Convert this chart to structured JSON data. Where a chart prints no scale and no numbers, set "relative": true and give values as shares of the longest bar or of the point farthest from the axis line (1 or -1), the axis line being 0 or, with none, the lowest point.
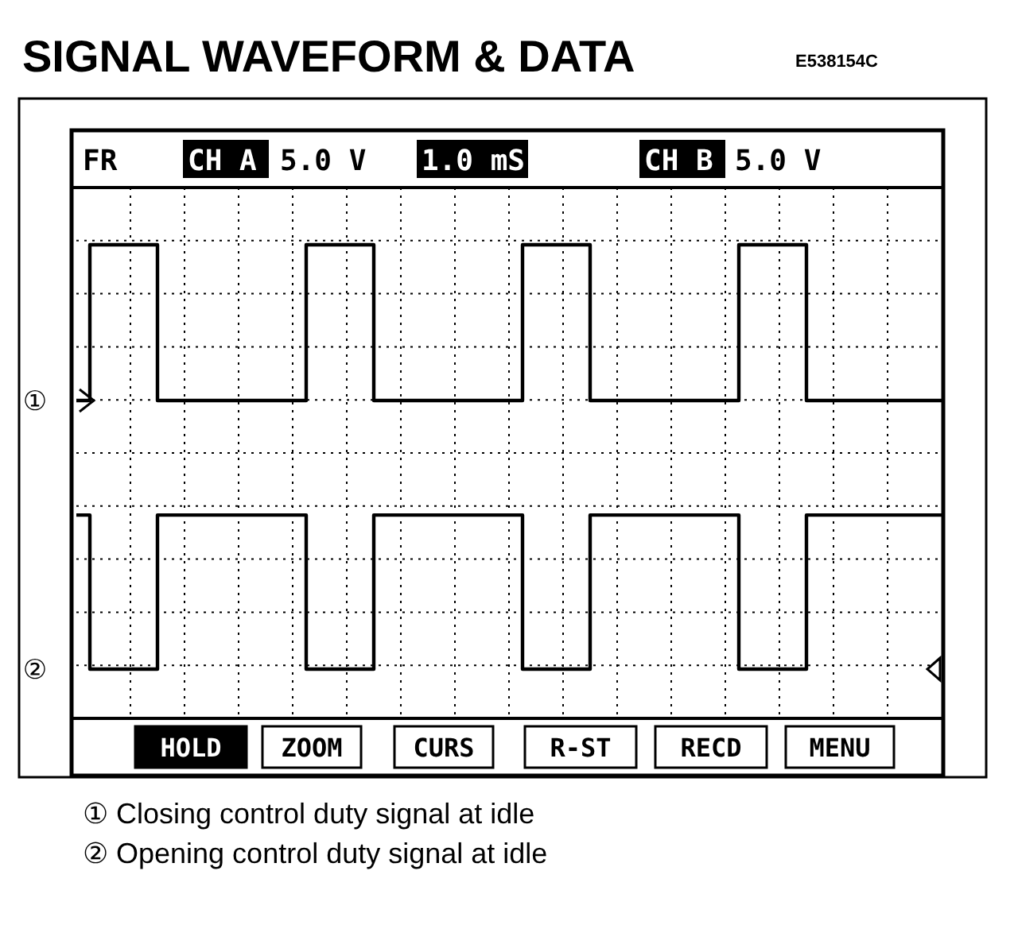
{
  "chart_data": {
    "type": "step",
    "title": "SIGNAL WAVEFORM & DATA",
    "subtitle": "E538154C",
    "relative": true,
    "categories": [
      null,
      null,
      null,
      null,
      null,
      null,
      null,
      null,
      null,
      null,
      null,
      null,
      null,
      null,
      null,
      null,
      null,
      null,
      null,
      null,
      null,
      null,
      null,
      null,
      null,
      null,
      null,
      null,
      null,
      null,
      null,
      null,
      null,
      null,
      null,
      null,
      null,
      null,
      null,
      null,
      null,
      null,
      null,
      null,
      null,
      null,
      null,
      null,
      null,
      null,
      null,
      null,
      null,
      null,
      null,
      null,
      null,
      null,
      null,
      null,
      null,
      null,
      null,
      null,
      null
    ],
    "series": [
      {
        "name": "①",
        "color": "#000000",
        "values": [
          0.633,
          1,
          1,
          1,
          1,
          1,
          0.633,
          0.633,
          0.633,
          0.633,
          0.633,
          0.633,
          0.633,
          0.633,
          0.633,
          0.633,
          0.633,
          1,
          1,
          1,
          1,
          1,
          0.633,
          0.633,
          0.633,
          0.633,
          0.633,
          0.633,
          0.633,
          0.633,
          0.633,
          0.633,
          0.633,
          1,
          1,
          1,
          1,
          1,
          0.633,
          0.633,
          0.633,
          0.633,
          0.633,
          0.633,
          0.633,
          0.633,
          0.633,
          0.633,
          0.633,
          1,
          1,
          1,
          1,
          1,
          0.633,
          0.633,
          0.633,
          0.633,
          0.633,
          0.633,
          0.633,
          0.633,
          0.633,
          0.633,
          0.633
        ]
      },
      {
        "name": "②",
        "color": "#000000",
        "values": [
          0.363,
          0,
          0,
          0,
          0,
          0,
          0.363,
          0.363,
          0.363,
          0.363,
          0.363,
          0.363,
          0.363,
          0.363,
          0.363,
          0.363,
          0.363,
          0,
          0,
          0,
          0,
          0,
          0.363,
          0.363,
          0.363,
          0.363,
          0.363,
          0.363,
          0.363,
          0.363,
          0.363,
          0.363,
          0.363,
          0,
          0,
          0,
          0,
          0,
          0.363,
          0.363,
          0.363,
          0.363,
          0.363,
          0.363,
          0.363,
          0.363,
          0.363,
          0.363,
          0.363,
          0,
          0,
          0,
          0,
          0,
          0.363,
          0.363,
          0.363,
          0.363,
          0.363,
          0.363,
          0.363,
          0.363,
          0.363,
          0.363,
          0.363
        ]
      }
    ],
    "grid": true,
    "legend": "left",
    "marker": "none",
    "line_style": "solid",
    "annotations": [
      "FR",
      "CH A",
      "5.0 V",
      "1.0 mS",
      "CH B",
      "5.0 V",
      "HOLD",
      "ZOOM",
      "CURS",
      "R-ST",
      "RECD",
      "MENU",
      "① Closing control duty signal at idle",
      "② Opening control duty signal at idle"
    ]
  }
}
